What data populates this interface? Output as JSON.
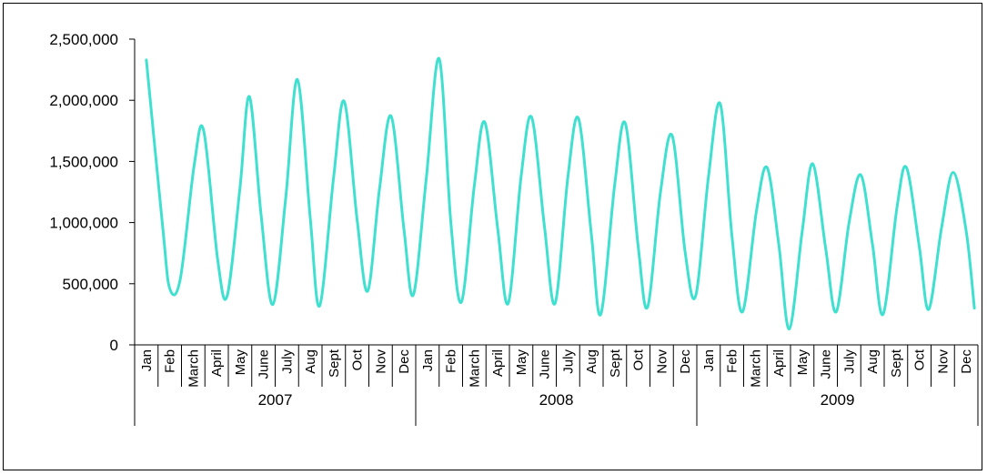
{
  "chart_data": {
    "type": "line",
    "title": "",
    "xlabel": "",
    "ylabel": "",
    "ylim": [
      0,
      2500000
    ],
    "yticks": [
      0,
      500000,
      1000000,
      1500000,
      2000000,
      2500000
    ],
    "ytick_labels": [
      "0",
      "500,000",
      "1,000,000",
      "1,500,000",
      "2,000,000",
      "2,500,000"
    ],
    "grid": false,
    "legend": "none",
    "line_color": "#40e0d0",
    "years": [
      "2007",
      "2008",
      "2009"
    ],
    "x": [
      "Jan",
      "Feb",
      "March",
      "April",
      "May",
      "June",
      "July",
      "Aug",
      "Sept",
      "Oct",
      "Nov",
      "Dec",
      "Jan",
      "Feb",
      "March",
      "April",
      "May",
      "June",
      "July",
      "Aug",
      "Sept",
      "Oct",
      "Nov",
      "Dec",
      "Jan",
      "Feb",
      "March",
      "April",
      "May",
      "June",
      "July",
      "Aug",
      "Sept",
      "Oct",
      "Nov",
      "Dec"
    ],
    "series": [
      {
        "points": [
          [
            0.0,
            2330000
          ],
          [
            0.7,
            960000
          ],
          [
            1.0,
            460000
          ],
          [
            1.45,
            540000
          ],
          [
            2.05,
            1480000
          ],
          [
            2.45,
            1750000
          ],
          [
            3.05,
            690000
          ],
          [
            3.45,
            400000
          ],
          [
            4.0,
            1290000
          ],
          [
            4.4,
            2030000
          ],
          [
            4.9,
            1060000
          ],
          [
            5.4,
            330000
          ],
          [
            5.95,
            1200000
          ],
          [
            6.45,
            2170000
          ],
          [
            7.0,
            1030000
          ],
          [
            7.4,
            320000
          ],
          [
            8.0,
            1380000
          ],
          [
            8.45,
            1990000
          ],
          [
            9.0,
            1020000
          ],
          [
            9.45,
            440000
          ],
          [
            9.95,
            1270000
          ],
          [
            10.45,
            1870000
          ],
          [
            11.0,
            940000
          ],
          [
            11.4,
            410000
          ],
          [
            11.95,
            1360000
          ],
          [
            12.5,
            2340000
          ],
          [
            13.0,
            1000000
          ],
          [
            13.45,
            350000
          ],
          [
            14.0,
            1300000
          ],
          [
            14.45,
            1820000
          ],
          [
            15.0,
            950000
          ],
          [
            15.45,
            340000
          ],
          [
            16.0,
            1380000
          ],
          [
            16.45,
            1860000
          ],
          [
            17.0,
            960000
          ],
          [
            17.45,
            340000
          ],
          [
            18.0,
            1380000
          ],
          [
            18.45,
            1850000
          ],
          [
            19.0,
            900000
          ],
          [
            19.4,
            250000
          ],
          [
            20.0,
            1320000
          ],
          [
            20.45,
            1810000
          ],
          [
            21.0,
            800000
          ],
          [
            21.4,
            310000
          ],
          [
            21.95,
            1250000
          ],
          [
            22.45,
            1710000
          ],
          [
            23.0,
            760000
          ],
          [
            23.45,
            400000
          ],
          [
            24.0,
            1380000
          ],
          [
            24.5,
            1970000
          ],
          [
            25.0,
            890000
          ],
          [
            25.45,
            270000
          ],
          [
            26.05,
            1100000
          ],
          [
            26.5,
            1450000
          ],
          [
            27.0,
            820000
          ],
          [
            27.45,
            130000
          ],
          [
            28.0,
            930000
          ],
          [
            28.45,
            1480000
          ],
          [
            29.0,
            790000
          ],
          [
            29.45,
            270000
          ],
          [
            30.0,
            1000000
          ],
          [
            30.5,
            1390000
          ],
          [
            31.0,
            820000
          ],
          [
            31.45,
            250000
          ],
          [
            32.05,
            1130000
          ],
          [
            32.45,
            1450000
          ],
          [
            33.0,
            800000
          ],
          [
            33.4,
            290000
          ],
          [
            33.95,
            960000
          ],
          [
            34.45,
            1410000
          ],
          [
            35.0,
            930000
          ],
          [
            35.35,
            300000
          ]
        ]
      }
    ]
  }
}
